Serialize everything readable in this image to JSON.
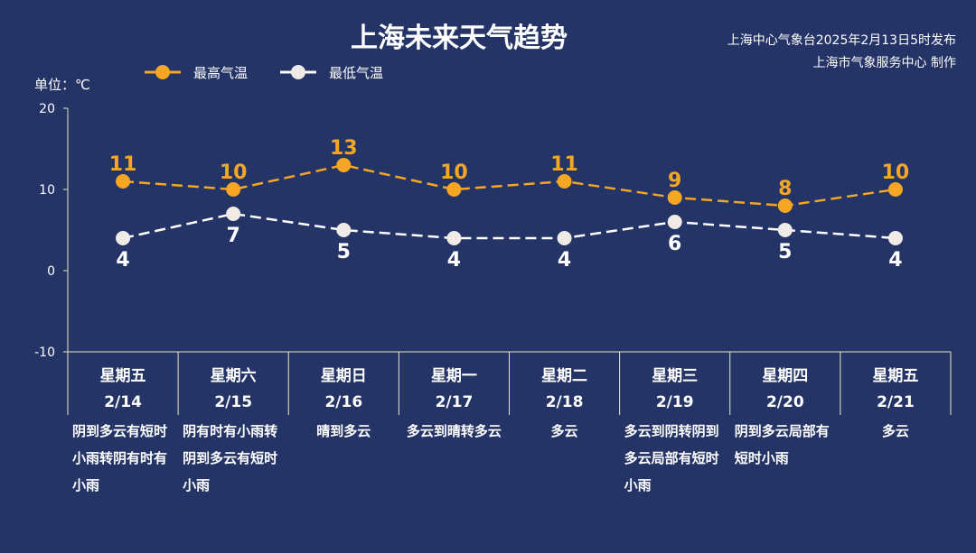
{
  "header": {
    "title": "上海未来天气趋势",
    "source_line1": "上海中心气象台2025年2月13日5时发布",
    "source_line2": "上海市气象服务中心 制作",
    "unit": "单位：℃"
  },
  "legend": {
    "high": "最高气温",
    "low": "最低气温"
  },
  "colors": {
    "background": "#253466",
    "high": "#f5a623",
    "low": "#ffffff"
  },
  "chart_data": {
    "type": "line",
    "categories": [
      "2/14",
      "2/15",
      "2/16",
      "2/17",
      "2/18",
      "2/19",
      "2/20",
      "2/21"
    ],
    "weekdays": [
      "星期五",
      "星期六",
      "星期日",
      "星期一",
      "星期二",
      "星期三",
      "星期四",
      "星期五"
    ],
    "weather": [
      "阴到多云有短时小雨转阴有时有小雨",
      "阴有时有小雨转阴到多云有短时小雨",
      "晴到多云",
      "多云到晴转多云",
      "多云",
      "多云到阴转阴到多云局部有短时小雨",
      "阴到多云局部有短时小雨",
      "多云"
    ],
    "series": [
      {
        "name": "最高气温",
        "values": [
          11,
          10,
          13,
          10,
          11,
          9,
          8,
          10
        ]
      },
      {
        "name": "最低气温",
        "values": [
          4,
          7,
          5,
          4,
          4,
          6,
          5,
          4
        ]
      }
    ],
    "ylim": [
      -10,
      20
    ],
    "yticks": [
      -10,
      0,
      10,
      20
    ],
    "ylabel": "单位：℃",
    "line_style": "dashed",
    "legend_position": "top-left"
  }
}
